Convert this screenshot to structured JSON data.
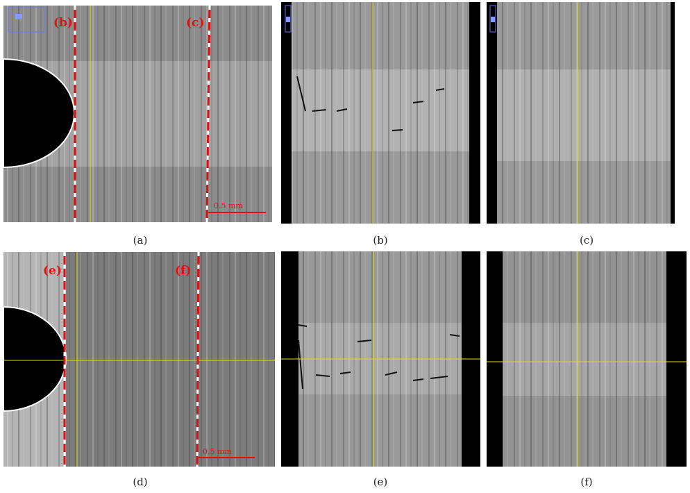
{
  "panels": [
    {
      "caption": "(a)",
      "labels": [
        "(b)",
        "(c)"
      ],
      "scale_bar": "0.5 mm"
    },
    {
      "caption": "(b)"
    },
    {
      "caption": "(c)"
    },
    {
      "caption": "(d)",
      "labels": [
        "(e)",
        "(f)"
      ],
      "scale_bar": "0.5 mm"
    },
    {
      "caption": "(e)"
    },
    {
      "caption": "(f)"
    }
  ]
}
